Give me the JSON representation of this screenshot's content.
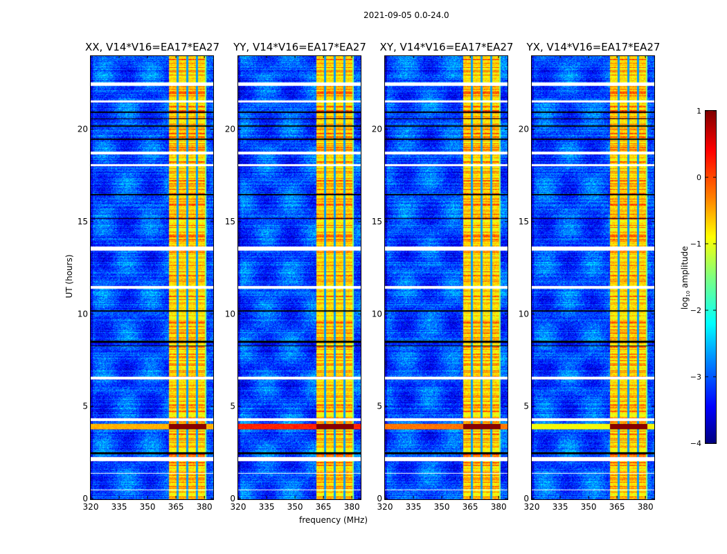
{
  "suptitle": "2021-09-05 0.0-24.0",
  "ylabel": "UT (hours)",
  "xlabel": "frequency (MHz)",
  "colorbar": {
    "label": "log10 amplitude",
    "label_main": "log",
    "label_sub": "10",
    "label_tail": " amplitude",
    "range": [
      -4,
      1
    ],
    "ticks": [
      "1",
      "0",
      "−1",
      "−2",
      "−3",
      "−4"
    ],
    "tick_values": [
      1,
      0,
      -1,
      -2,
      -3,
      -4
    ],
    "colormap": "jet"
  },
  "chart_data": [
    {
      "type": "heatmap",
      "title": "XX, V14*V16=EA17*EA27",
      "pol": "XX",
      "rfi_level": -0.5
    },
    {
      "type": "heatmap",
      "title": "YY, V14*V16=EA17*EA27",
      "pol": "YY",
      "rfi_level": 0.2
    },
    {
      "type": "heatmap",
      "title": "XY, V14*V16=EA17*EA27",
      "pol": "XY",
      "rfi_level": -0.2
    },
    {
      "type": "heatmap",
      "title": "YX, V14*V16=EA17*EA27",
      "pol": "YX",
      "rfi_level": -0.9
    }
  ],
  "axes": {
    "xlim": [
      320,
      384.7
    ],
    "ylim": [
      0,
      24
    ],
    "xticks": [
      "320",
      "335",
      "350",
      "365",
      "380"
    ],
    "xtick_values": [
      320,
      335,
      350,
      365,
      380
    ],
    "yticks": [
      "0",
      "5",
      "10",
      "15",
      "20"
    ],
    "ytick_values": [
      0,
      5,
      10,
      15,
      20
    ]
  },
  "features": {
    "background_level": -3.0,
    "bright_band_mhz": [
      361,
      380.7
    ],
    "bright_band_level": -1.0,
    "band_notches_mhz": [
      365.7,
      370.8,
      376.0
    ],
    "flagged_hours": [
      [
        22.4,
        22.6
      ],
      [
        21.5,
        21.6
      ],
      [
        18.7,
        18.85
      ],
      [
        18.05,
        18.15
      ],
      [
        13.5,
        13.7
      ],
      [
        11.4,
        11.55
      ],
      [
        6.5,
        6.65
      ],
      [
        4.25,
        4.4
      ],
      [
        2.1,
        2.3
      ],
      [
        1.4,
        1.45
      ],
      [
        0.5,
        0.55
      ]
    ],
    "dead_hours": [
      [
        20.95,
        21.0
      ],
      [
        20.6,
        20.65
      ],
      [
        20.2,
        20.25
      ],
      [
        19.5,
        19.55
      ],
      [
        15.2,
        15.25
      ],
      [
        8.5,
        8.6
      ],
      [
        8.3,
        8.35
      ],
      [
        2.45,
        2.55
      ],
      [
        16.5,
        16.55
      ],
      [
        10.2,
        10.25
      ]
    ],
    "rfi_band_hours": [
      3.8,
      4.1
    ]
  }
}
